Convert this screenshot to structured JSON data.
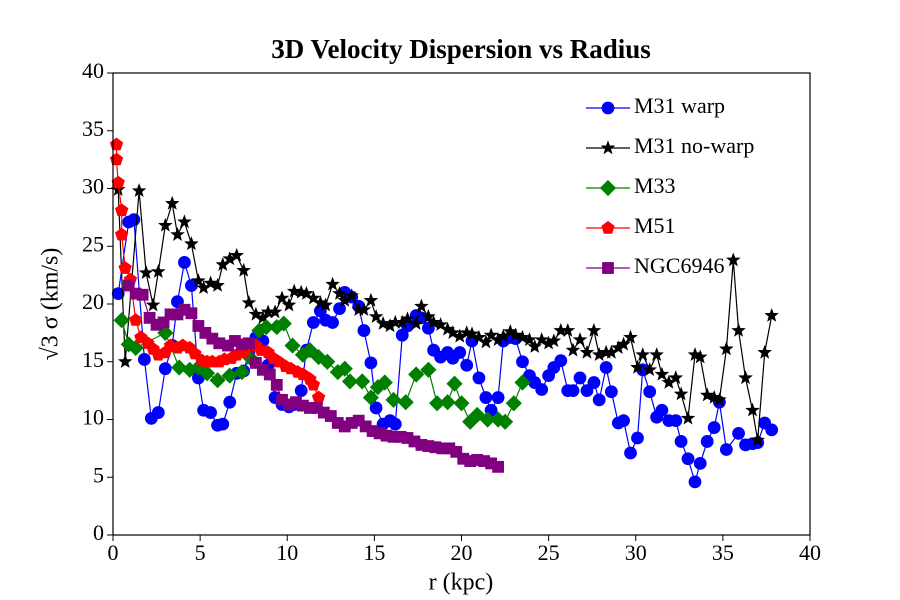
{
  "chart_data": {
    "type": "line",
    "title": "3D Velocity Dispersion vs Radius",
    "x_label": "r (kpc)",
    "y_label": "√3 σ (km/s)",
    "xlim": [
      0,
      40
    ],
    "xticks": [
      0,
      5,
      10,
      15,
      20,
      25,
      30,
      35,
      40
    ],
    "ylim": [
      0,
      40
    ],
    "yticks": [
      0,
      5,
      10,
      15,
      20,
      25,
      30,
      35,
      40
    ],
    "legend": "upper right",
    "series": [
      {
        "name": "M31 warp",
        "color": "#0000ff",
        "marker": "circle",
        "x": [
          0.3,
          0.9,
          1.2,
          1.8,
          2.2,
          2.6,
          3.0,
          3.4,
          3.7,
          4.1,
          4.5,
          4.9,
          5.2,
          5.6,
          6.0,
          6.3,
          6.7,
          7.1,
          7.5,
          7.8,
          8.2,
          8.6,
          8.9,
          9.3,
          9.7,
          10.1,
          10.4,
          10.8,
          11.1,
          11.5,
          11.9,
          12.2,
          12.6,
          13.0,
          13.3,
          13.7,
          14.1,
          14.4,
          14.8,
          15.1,
          15.5,
          15.9,
          16.2,
          16.6,
          16.9,
          17.4,
          17.7,
          18.1,
          18.4,
          18.8,
          19.2,
          19.5,
          19.9,
          20.3,
          20.6,
          21.0,
          21.4,
          21.7,
          22.1,
          22.4,
          22.8,
          23.1,
          23.5,
          23.9,
          24.2,
          24.6,
          25.0,
          25.3,
          25.7,
          26.1,
          26.4,
          26.8,
          27.2,
          27.6,
          27.9,
          28.3,
          28.6,
          29.0,
          29.3,
          29.7,
          30.1,
          30.4,
          30.8,
          31.2,
          31.5,
          31.9,
          32.3,
          32.6,
          33.0,
          33.4,
          33.7,
          34.1,
          34.5,
          34.8,
          35.2,
          35.9,
          36.3,
          36.7,
          37.0,
          37.4,
          37.8
        ],
        "values": [
          20.9,
          27.1,
          27.3,
          15.2,
          10.1,
          10.6,
          14.4,
          16.4,
          20.2,
          23.6,
          21.6,
          13.6,
          10.8,
          10.6,
          9.5,
          9.6,
          11.5,
          14.0,
          14.2,
          15.8,
          17.1,
          16.8,
          14.7,
          11.9,
          11.3,
          11.1,
          11.3,
          12.5,
          16.0,
          18.4,
          19.4,
          18.6,
          18.4,
          19.6,
          21.0,
          20.6,
          19.8,
          17.7,
          14.9,
          11.0,
          9.6,
          9.9,
          9.6,
          17.3,
          18.1,
          19.0,
          18.8,
          17.9,
          16.0,
          15.4,
          15.8,
          15.3,
          15.8,
          14.7,
          16.8,
          13.6,
          11.9,
          10.8,
          11.9,
          16.8,
          17.1,
          17.0,
          15.0,
          13.8,
          13.2,
          12.6,
          13.8,
          14.5,
          15.1,
          12.5,
          12.5,
          13.6,
          12.5,
          13.2,
          11.7,
          14.5,
          12.4,
          9.7,
          9.9,
          7.1,
          8.4,
          14.3,
          12.4,
          10.2,
          10.8,
          9.9,
          9.9,
          8.1,
          6.6,
          4.6,
          6.2,
          8.1,
          9.3,
          11.5,
          7.4,
          8.8,
          7.8,
          7.9,
          8.0,
          9.7,
          9.1
        ]
      },
      {
        "name": "M31 no-warp",
        "color": "#000000",
        "marker": "star",
        "x": [
          0.3,
          0.7,
          1.5,
          1.9,
          2.3,
          2.6,
          3.0,
          3.4,
          3.7,
          4.1,
          4.5,
          4.9,
          5.2,
          5.6,
          6.0,
          6.3,
          6.7,
          7.1,
          7.5,
          7.8,
          8.2,
          8.6,
          8.9,
          9.3,
          9.7,
          10.1,
          10.4,
          10.8,
          11.1,
          11.5,
          11.9,
          12.2,
          12.6,
          13.0,
          13.3,
          13.7,
          14.1,
          14.4,
          14.8,
          15.1,
          15.5,
          15.9,
          16.2,
          16.6,
          16.9,
          17.4,
          17.7,
          18.1,
          18.4,
          18.8,
          19.2,
          19.5,
          19.9,
          20.3,
          20.6,
          21.0,
          21.4,
          21.7,
          22.1,
          22.4,
          22.8,
          23.1,
          23.5,
          23.9,
          24.2,
          24.6,
          25.0,
          25.3,
          25.7,
          26.1,
          26.4,
          26.8,
          27.2,
          27.6,
          27.9,
          28.3,
          28.6,
          29.0,
          29.3,
          29.7,
          30.1,
          30.4,
          30.8,
          31.2,
          31.5,
          31.9,
          32.3,
          32.6,
          33.0,
          33.4,
          33.7,
          34.1,
          34.5,
          34.8,
          35.2,
          35.6,
          35.9,
          36.3,
          36.7,
          37.0,
          37.4,
          37.8
        ],
        "values": [
          29.9,
          15.0,
          29.8,
          22.7,
          19.9,
          22.8,
          26.8,
          28.7,
          26.0,
          27.1,
          25.2,
          22.0,
          21.4,
          21.8,
          21.6,
          23.4,
          23.9,
          24.2,
          22.9,
          20.1,
          19.1,
          18.8,
          19.3,
          19.3,
          20.5,
          19.9,
          21.1,
          21.0,
          20.9,
          20.5,
          20.1,
          19.9,
          21.7,
          20.9,
          20.3,
          20.7,
          19.5,
          19.5,
          20.3,
          18.9,
          18.3,
          18.1,
          18.4,
          18.4,
          18.7,
          18.3,
          19.8,
          18.9,
          18.4,
          18.2,
          17.8,
          17.5,
          17.2,
          17.5,
          17.4,
          17.1,
          16.7,
          17.3,
          16.9,
          17.2,
          17.6,
          17.3,
          17.1,
          16.9,
          16.3,
          16.9,
          16.6,
          16.8,
          17.7,
          17.7,
          16.0,
          16.9,
          15.8,
          17.7,
          15.6,
          15.8,
          15.8,
          16.2,
          16.5,
          17.1,
          14.5,
          15.6,
          14.3,
          15.6,
          13.9,
          13.2,
          13.6,
          12.2,
          10.1,
          15.6,
          15.4,
          12.1,
          11.9,
          11.7,
          16.1,
          23.8,
          17.7,
          13.6,
          10.8,
          8.2,
          15.8,
          19.0
        ]
      },
      {
        "name": "M33",
        "color": "#008000",
        "marker": "diamond",
        "x": [
          0.5,
          0.9,
          1.3,
          3.0,
          3.8,
          4.4,
          4.9,
          5.4,
          6.0,
          6.7,
          7.4,
          7.9,
          8.4,
          8.8,
          9.4,
          9.8,
          10.3,
          10.9,
          11.3,
          11.8,
          12.3,
          12.9,
          13.3,
          13.6,
          14.3,
          14.8,
          15.2,
          15.6,
          16.1,
          16.8,
          17.4,
          18.1,
          18.6,
          19.2,
          19.6,
          20.0,
          20.5,
          20.9,
          21.5,
          22.1,
          22.5,
          23.0,
          23.5
        ],
        "values": [
          18.6,
          16.5,
          16.2,
          17.5,
          14.5,
          14.3,
          14.5,
          14.0,
          13.4,
          13.8,
          14.1,
          15.3,
          17.7,
          18.0,
          18.0,
          18.3,
          16.4,
          15.6,
          16.0,
          15.4,
          15.0,
          14.1,
          14.4,
          13.3,
          13.3,
          11.9,
          12.8,
          13.2,
          11.7,
          11.5,
          13.9,
          14.3,
          11.4,
          11.5,
          13.1,
          11.4,
          9.8,
          10.4,
          10.0,
          10.0,
          9.8,
          11.4,
          13.2
        ]
      },
      {
        "name": "M51",
        "color": "#ff0000",
        "marker": "pentagon",
        "x": [
          0.2,
          0.2,
          0.3,
          0.5,
          0.5,
          0.7,
          1.0,
          1.3,
          1.6,
          2.0,
          2.3,
          2.6,
          3.0,
          3.3,
          3.7,
          4.0,
          4.4,
          4.7,
          5.1,
          5.4,
          5.7,
          6.1,
          6.4,
          6.8,
          7.1,
          7.5,
          7.8,
          8.2,
          8.5,
          8.9,
          9.2,
          9.5,
          9.9,
          10.2,
          10.6,
          10.9,
          11.3,
          11.5,
          11.8
        ],
        "values": [
          33.8,
          32.5,
          30.5,
          28.1,
          26.0,
          23.1,
          22.1,
          18.6,
          17.1,
          16.6,
          16.1,
          15.6,
          15.8,
          16.4,
          16.2,
          16.4,
          16.2,
          15.7,
          15.1,
          15.0,
          15.0,
          15.0,
          15.2,
          15.3,
          15.6,
          15.8,
          16.3,
          16.4,
          16.0,
          15.8,
          15.3,
          15.0,
          14.6,
          14.4,
          14.1,
          13.9,
          13.5,
          13.0,
          11.9
        ]
      },
      {
        "name": "NGC6946",
        "color": "#800080",
        "marker": "square",
        "x": [
          0.9,
          1.3,
          1.7,
          2.1,
          2.5,
          2.9,
          3.3,
          3.7,
          4.1,
          4.5,
          4.9,
          5.3,
          5.7,
          6.1,
          6.6,
          7.0,
          7.4,
          7.8,
          8.2,
          8.6,
          9.0,
          9.4,
          9.7,
          10.1,
          10.5,
          10.9,
          11.3,
          11.7,
          12.1,
          12.5,
          12.9,
          13.3,
          13.7,
          14.1,
          14.5,
          14.9,
          15.3,
          15.7,
          16.1,
          16.5,
          16.9,
          17.3,
          17.7,
          18.1,
          18.5,
          18.9,
          19.3,
          19.7,
          20.1,
          20.5,
          20.9,
          21.3,
          21.7,
          22.1
        ],
        "values": [
          21.6,
          20.9,
          20.8,
          18.8,
          18.2,
          18.4,
          19.1,
          19.1,
          19.5,
          19.2,
          18.1,
          17.5,
          17.0,
          16.6,
          16.4,
          16.8,
          16.5,
          16.6,
          14.9,
          14.3,
          13.9,
          13.0,
          11.7,
          11.3,
          11.5,
          11.2,
          11.0,
          11.0,
          10.6,
          10.3,
          9.7,
          9.4,
          9.7,
          9.9,
          9.4,
          9.0,
          8.8,
          8.6,
          8.5,
          8.5,
          8.4,
          8.1,
          7.8,
          7.7,
          7.6,
          7.5,
          7.5,
          7.2,
          6.6,
          6.4,
          6.5,
          6.4,
          6.2,
          5.9
        ]
      }
    ]
  }
}
